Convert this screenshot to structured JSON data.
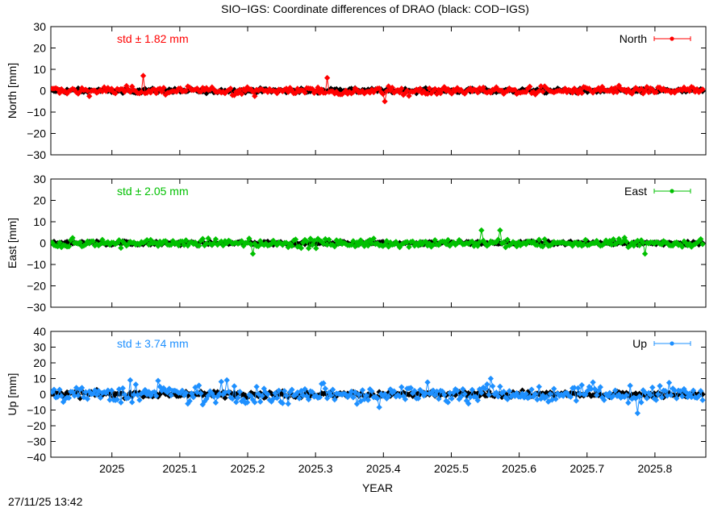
{
  "chart_data": {
    "type": "scatter",
    "title": "SIO−IGS: Coordinate differences of DRAO (black: COD−IGS)",
    "xlabel": "YEAR",
    "x_ticks": [
      "2025",
      "2025.1",
      "2025.2",
      "2025.3",
      "2025.4",
      "2025.5",
      "2025.6",
      "2025.7",
      "2025.8"
    ],
    "x_tick_values": [
      2025.0,
      2025.1,
      2025.2,
      2025.3,
      2025.4,
      2025.5,
      2025.6,
      2025.7,
      2025.8
    ],
    "xlim": [
      2024.91,
      2025.875
    ],
    "timestamp": "27/11/25 13:42",
    "panels": [
      {
        "name": "North",
        "ylabel": "North [mm]",
        "ylim": [
          -30,
          30
        ],
        "y_ticks": [
          "30",
          "20",
          "10",
          "0",
          "−10",
          "−20",
          "−30"
        ],
        "y_tick_values": [
          30,
          20,
          10,
          0,
          -10,
          -20,
          -30
        ],
        "legend": "North",
        "color": "#ff0000",
        "std_text": "std ± 1.82 mm",
        "spikes": [
          [
            2025.047,
            7
          ],
          [
            2025.316,
            6
          ],
          [
            2025.403,
            -5
          ]
        ]
      },
      {
        "name": "East",
        "ylabel": "East [mm]",
        "ylim": [
          -30,
          30
        ],
        "y_ticks": [
          "30",
          "20",
          "10",
          "0",
          "−10",
          "−20",
          "−30"
        ],
        "y_tick_values": [
          30,
          20,
          10,
          0,
          -10,
          -20,
          -30
        ],
        "legend": "East",
        "color": "#00c000",
        "std_text": "std ± 2.05 mm",
        "spikes": [
          [
            2025.545,
            6
          ],
          [
            2025.572,
            6
          ],
          [
            2025.785,
            -5
          ],
          [
            2025.207,
            -5
          ]
        ]
      },
      {
        "name": "Up",
        "ylabel": "Up [mm]",
        "ylim": [
          -40,
          40
        ],
        "y_ticks": [
          "40",
          "30",
          "20",
          "10",
          "0",
          "−10",
          "−20",
          "−30",
          "−40"
        ],
        "y_tick_values": [
          40,
          30,
          20,
          10,
          0,
          -10,
          -20,
          -30,
          -40
        ],
        "legend": "Up",
        "color": "#1e90ff",
        "std_text": "std ± 3.74 mm",
        "spikes": [
          [
            2025.557,
            10
          ],
          [
            2025.17,
            9
          ],
          [
            2025.16,
            8
          ],
          [
            2025.027,
            9
          ],
          [
            2025.775,
            -12
          ]
        ]
      }
    ]
  }
}
